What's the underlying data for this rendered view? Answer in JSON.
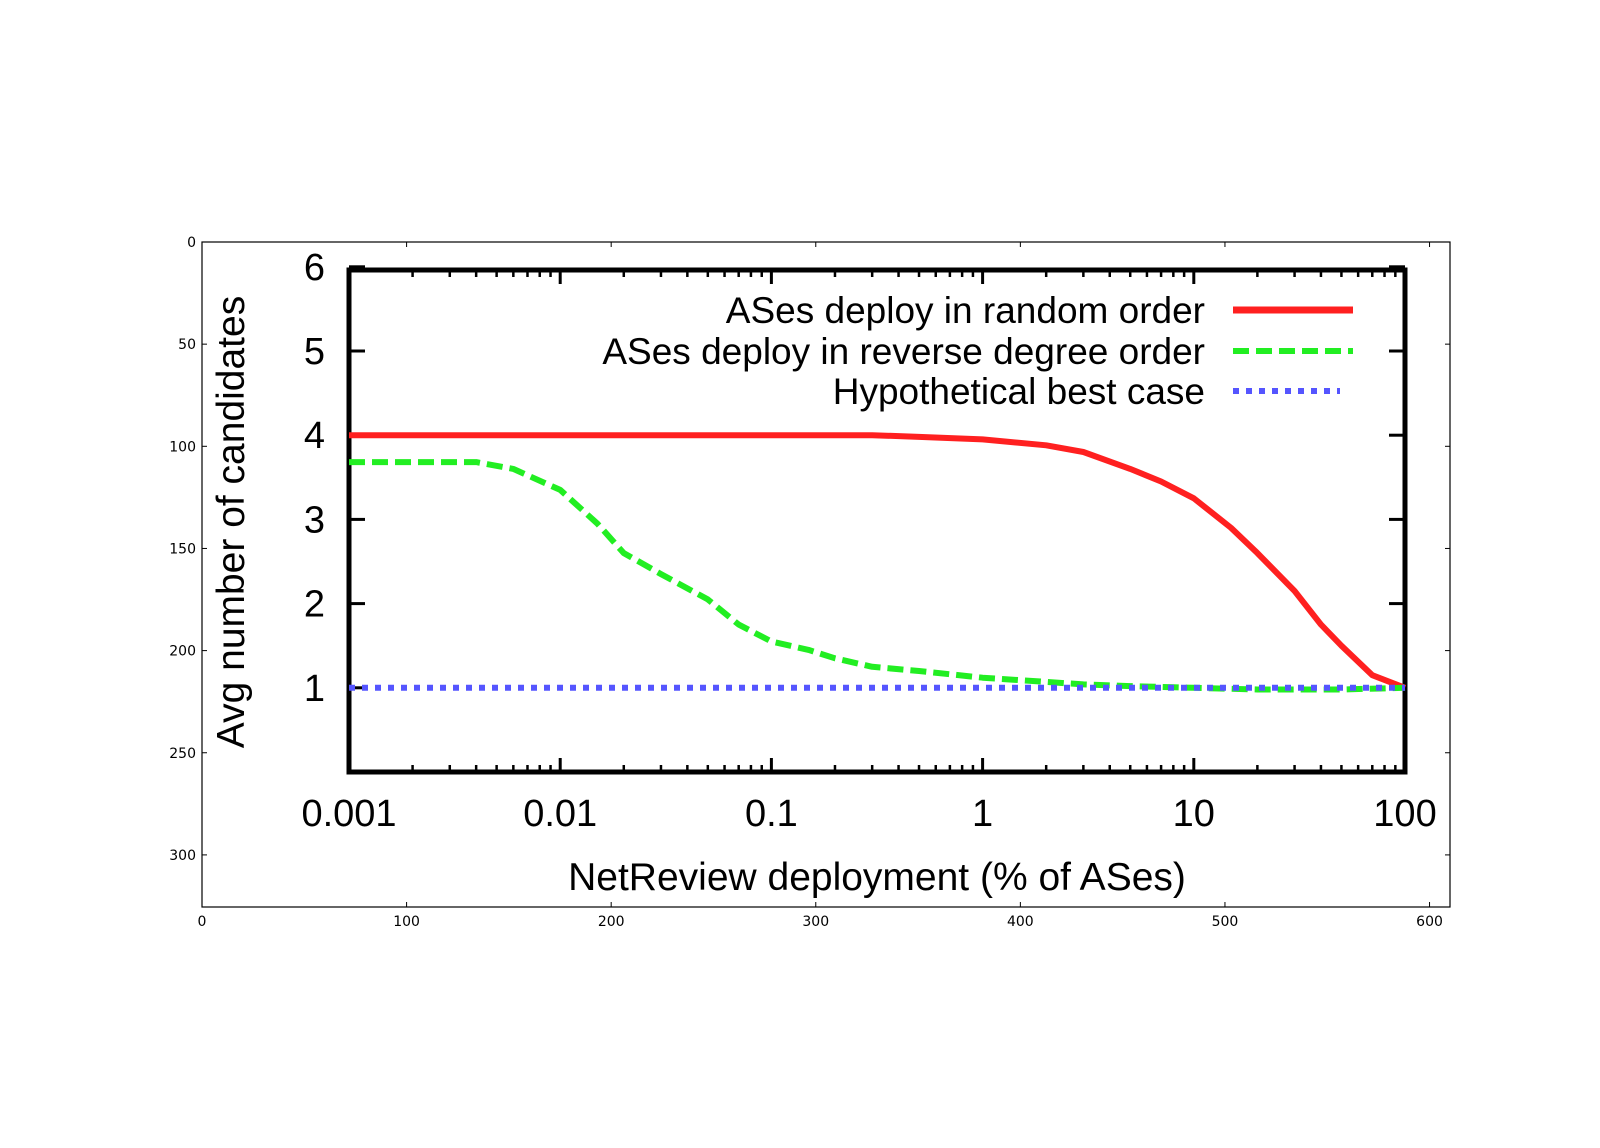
{
  "chart_data": {
    "type": "line",
    "xlabel": "NetReview deployment (% of ASes)",
    "ylabel": "Avg number of candidates",
    "xscale": "log",
    "xlim": [
      0.001,
      100
    ],
    "ylim": [
      0,
      6
    ],
    "x_ticks": [
      "0.001",
      "0.01",
      "0.1",
      "1",
      "10",
      "100"
    ],
    "y_ticks": [
      "1",
      "2",
      "3",
      "4",
      "5",
      "6"
    ],
    "legend": {
      "position": "top-right"
    },
    "series": [
      {
        "name": "ASes deploy in random order",
        "color": "#ff2020",
        "style": "solid",
        "x": [
          0.001,
          0.01,
          0.1,
          0.3,
          0.5,
          1,
          2,
          3,
          5,
          7,
          10,
          15,
          20,
          30,
          40,
          50,
          70,
          100
        ],
        "y": [
          4.0,
          4.0,
          4.0,
          4.0,
          3.98,
          3.95,
          3.88,
          3.8,
          3.6,
          3.45,
          3.25,
          2.9,
          2.6,
          2.15,
          1.75,
          1.5,
          1.15,
          1.0
        ]
      },
      {
        "name": "ASes deploy in reverse degree order",
        "color": "#22ee22",
        "style": "dashed",
        "x": [
          0.001,
          0.002,
          0.004,
          0.006,
          0.01,
          0.015,
          0.02,
          0.03,
          0.05,
          0.07,
          0.1,
          0.15,
          0.2,
          0.3,
          0.5,
          1,
          2,
          3,
          5,
          10,
          20,
          50,
          100
        ],
        "y": [
          3.68,
          3.68,
          3.68,
          3.6,
          3.35,
          2.95,
          2.6,
          2.35,
          2.05,
          1.75,
          1.55,
          1.45,
          1.35,
          1.25,
          1.2,
          1.12,
          1.07,
          1.04,
          1.02,
          1.0,
          0.98,
          0.98,
          1.0
        ]
      },
      {
        "name": "Hypothetical best case",
        "color": "#5555ff",
        "style": "dotted",
        "x": [
          0.001,
          100
        ],
        "y": [
          1.0,
          1.0
        ]
      }
    ]
  },
  "frame": {
    "x_ticks": [
      "0",
      "100",
      "200",
      "300",
      "400",
      "500",
      "600"
    ],
    "y_ticks": [
      "0",
      "50",
      "100",
      "150",
      "200",
      "250",
      "300"
    ]
  }
}
